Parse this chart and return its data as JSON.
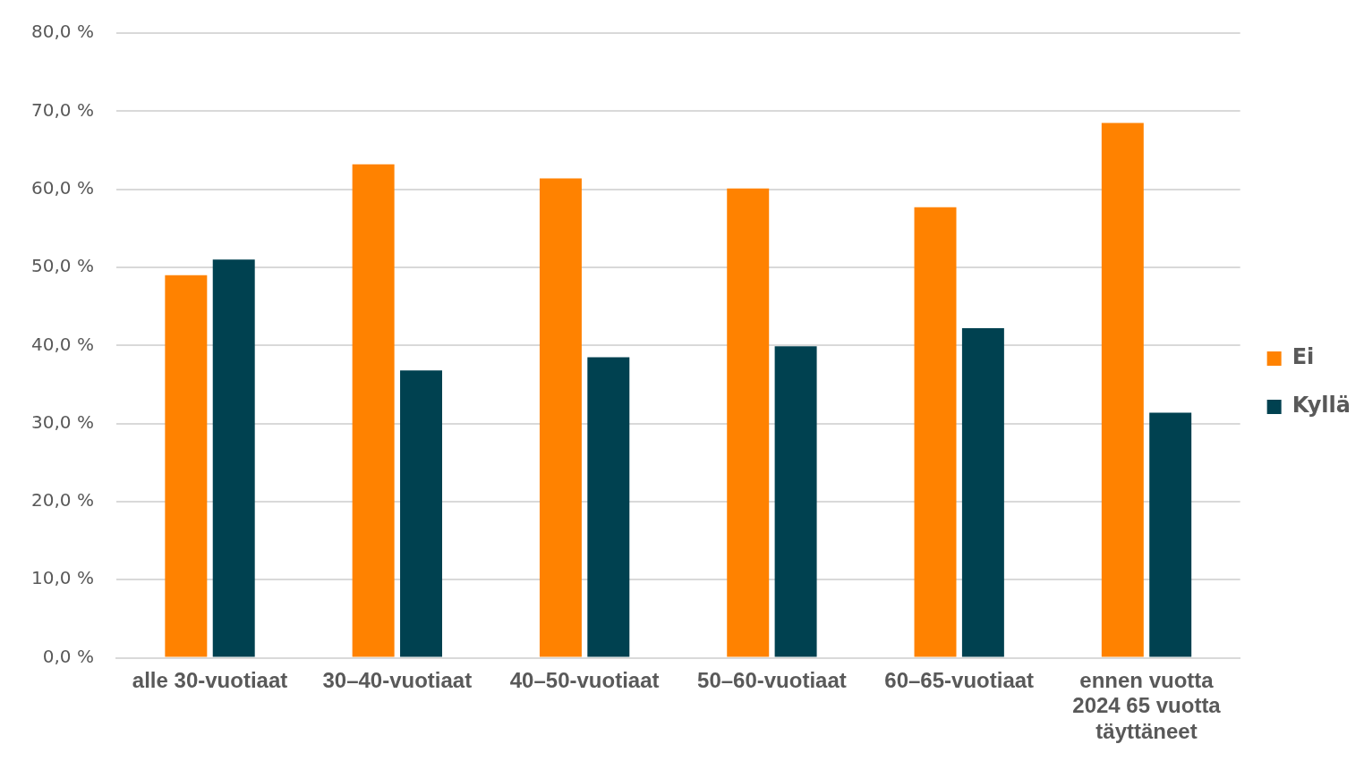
{
  "chart_data": {
    "type": "bar",
    "categories": [
      "alle 30-vuotiaat",
      "30–40-vuotiaat",
      "40–50-vuotiaat",
      "50–60-vuotiaat",
      "60–65-vuotiaat",
      "ennen vuotta 2024 65 vuotta täyttäneet"
    ],
    "series": [
      {
        "name": "Ei",
        "color": "#ff8200",
        "values": [
          49.0,
          63.2,
          61.4,
          60.1,
          57.7,
          68.5
        ]
      },
      {
        "name": "Kyllä",
        "color": "#004150",
        "values": [
          51.0,
          36.8,
          38.5,
          39.9,
          42.2,
          31.4
        ]
      }
    ],
    "ylim": [
      0,
      80
    ],
    "yticks": [
      {
        "value": 0,
        "label": "0,0 %"
      },
      {
        "value": 10,
        "label": "10,0 %"
      },
      {
        "value": 20,
        "label": "20,0 %"
      },
      {
        "value": 30,
        "label": "30,0 %"
      },
      {
        "value": 40,
        "label": "40,0 %"
      },
      {
        "value": 50,
        "label": "50,0 %"
      },
      {
        "value": 60,
        "label": "60,0 %"
      },
      {
        "value": 70,
        "label": "70,0 %"
      },
      {
        "value": 80,
        "label": "80,0 %"
      }
    ],
    "grid": "y",
    "legend": "right"
  }
}
